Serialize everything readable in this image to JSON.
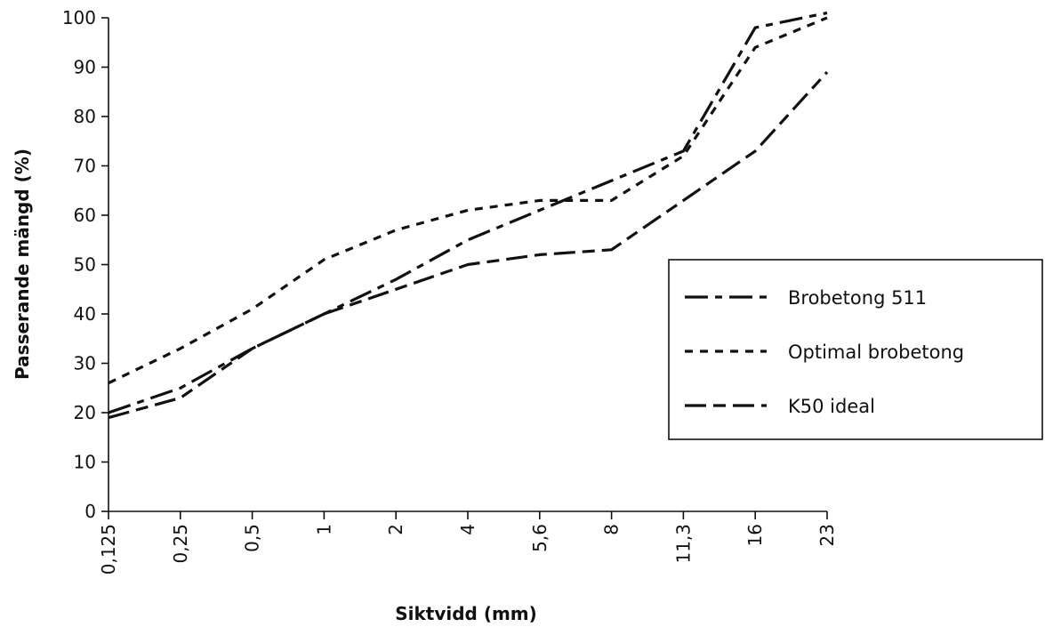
{
  "chart_data": {
    "type": "line",
    "title": "",
    "xlabel": "Siktvidd (mm)",
    "ylabel": "Passerande mängd (%)",
    "categories": [
      "0,125",
      "0,25",
      "0,5",
      "1",
      "2",
      "4",
      "5,6",
      "8",
      "11,3",
      "16",
      "23"
    ],
    "ylim": [
      0,
      100
    ],
    "yticks": [
      "0",
      "10",
      "20",
      "30",
      "40",
      "50",
      "60",
      "70",
      "80",
      "90",
      "100"
    ],
    "grid": false,
    "legend_position": "right",
    "series": [
      {
        "name": "Brobetong 511",
        "values": [
          20,
          25,
          33,
          40,
          47,
          55,
          61,
          67,
          73,
          98,
          101
        ],
        "dash": "long-short",
        "color": "#111111"
      },
      {
        "name": "Optimal brobetong",
        "values": [
          26,
          33,
          41,
          51,
          57,
          61,
          63,
          63,
          72,
          94,
          100
        ],
        "dash": "short",
        "color": "#111111"
      },
      {
        "name": "K50 ideal",
        "values": [
          19,
          23,
          33,
          40,
          45,
          50,
          52,
          53,
          63,
          73,
          89
        ],
        "dash": "long-medium",
        "color": "#111111"
      }
    ]
  }
}
